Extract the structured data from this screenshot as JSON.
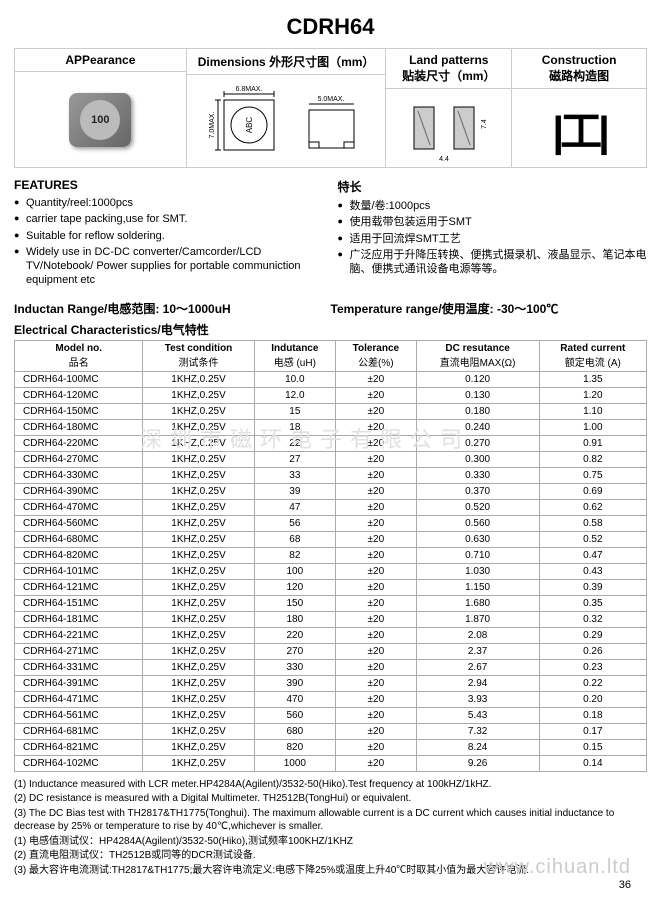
{
  "title": "CDRH64",
  "diagram_headers": {
    "appearance": "APPearance",
    "dimensions": "Dimensions 外形尺寸图（mm）",
    "land": "Land patterns\n贴装尺寸（mm）",
    "construction": "Construction\n磁路构造图"
  },
  "dim_labels": {
    "w": "6.8MAX.",
    "h": "7.0MAX.",
    "t": "5.0MAX.",
    "mark": "ABC"
  },
  "features_hdr_en": "FEATURES",
  "features_hdr_cn": "特长",
  "features_en": [
    "Quantity/reel:1000pcs",
    "carrier tape packing,use for SMT.",
    "Suitable for reflow soldering.",
    "Widely use in DC-DC converter/Camcorder/LCD TV/Notebook/ Power supplies for portable communiction equipment etc"
  ],
  "features_cn": [
    "数量/卷:1000pcs",
    "使用载带包装运用于SMT",
    "适用于回流焊SMT工艺",
    "广泛应用于升降压转换、便携式摄录机、液晶显示、笔记本电脑、便携式通讯设备电源等等。"
  ],
  "ind_range": "Inductan Range/电感范围: 10～1000uH",
  "temp_range": "Temperature range/使用温度: -30～100℃",
  "elec_char": "Electrical Characteristics/电气特性",
  "columns": [
    {
      "en": "Model no.",
      "cn": "品名"
    },
    {
      "en": "Test condition",
      "cn": "测试条件"
    },
    {
      "en": "Indutance",
      "cn": "电感 (uH)"
    },
    {
      "en": "Tolerance",
      "cn": "公差(%)"
    },
    {
      "en": "DC resutance",
      "cn": "直流电阻MAX(Ω)"
    },
    {
      "en": "Rated current",
      "cn": "额定电流 (A)"
    }
  ],
  "rows": [
    [
      "CDRH64-100MC",
      "1KHZ,0.25V",
      "10.0",
      "±20",
      "0.120",
      "1.35"
    ],
    [
      "CDRH64-120MC",
      "1KHZ,0.25V",
      "12.0",
      "±20",
      "0.130",
      "1.20"
    ],
    [
      "CDRH64-150MC",
      "1KHZ,0.25V",
      "15",
      "±20",
      "0.180",
      "1.10"
    ],
    [
      "CDRH64-180MC",
      "1KHZ,0.25V",
      "18",
      "±20",
      "0.240",
      "1.00"
    ],
    [
      "CDRH64-220MC",
      "1KHZ,0.25V",
      "22",
      "±20",
      "0.270",
      "0.91"
    ],
    [
      "CDRH64-270MC",
      "1KHZ,0.25V",
      "27",
      "±20",
      "0.300",
      "0.82"
    ],
    [
      "CDRH64-330MC",
      "1KHZ,0.25V",
      "33",
      "±20",
      "0.330",
      "0.75"
    ],
    [
      "CDRH64-390MC",
      "1KHZ,0.25V",
      "39",
      "±20",
      "0.370",
      "0.69"
    ],
    [
      "CDRH64-470MC",
      "1KHZ,0.25V",
      "47",
      "±20",
      "0.520",
      "0.62"
    ],
    [
      "CDRH64-560MC",
      "1KHZ,0.25V",
      "56",
      "±20",
      "0.560",
      "0.58"
    ],
    [
      "CDRH64-680MC",
      "1KHZ,0.25V",
      "68",
      "±20",
      "0.630",
      "0.52"
    ],
    [
      "CDRH64-820MC",
      "1KHZ,0.25V",
      "82",
      "±20",
      "0.710",
      "0.47"
    ],
    [
      "CDRH64-101MC",
      "1KHZ,0.25V",
      "100",
      "±20",
      "1.030",
      "0.43"
    ],
    [
      "CDRH64-121MC",
      "1KHZ,0.25V",
      "120",
      "±20",
      "1.150",
      "0.39"
    ],
    [
      "CDRH64-151MC",
      "1KHZ,0.25V",
      "150",
      "±20",
      "1.680",
      "0.35"
    ],
    [
      "CDRH64-181MC",
      "1KHZ,0.25V",
      "180",
      "±20",
      "1.870",
      "0.32"
    ],
    [
      "CDRH64-221MC",
      "1KHZ,0.25V",
      "220",
      "±20",
      "2.08",
      "0.29"
    ],
    [
      "CDRH64-271MC",
      "1KHZ,0.25V",
      "270",
      "±20",
      "2.37",
      "0.26"
    ],
    [
      "CDRH64-331MC",
      "1KHZ,0.25V",
      "330",
      "±20",
      "2.67",
      "0.23"
    ],
    [
      "CDRH64-391MC",
      "1KHZ,0.25V",
      "390",
      "±20",
      "2.94",
      "0.22"
    ],
    [
      "CDRH64-471MC",
      "1KHZ,0.25V",
      "470",
      "±20",
      "3.93",
      "0.20"
    ],
    [
      "CDRH64-561MC",
      "1KHZ,0.25V",
      "560",
      "±20",
      "5.43",
      "0.18"
    ],
    [
      "CDRH64-681MC",
      "1KHZ,0.25V",
      "680",
      "±20",
      "7.32",
      "0.17"
    ],
    [
      "CDRH64-821MC",
      "1KHZ,0.25V",
      "820",
      "±20",
      "8.24",
      "0.15"
    ],
    [
      "CDRH64-102MC",
      "1KHZ,0.25V",
      "1000",
      "±20",
      "9.26",
      "0.14"
    ]
  ],
  "notes": [
    "(1) Inductance measured with LCR meter.HP4284A(Agilent)/3532-50(Hiko).Test frequency at 100kHZ/1kHZ.",
    "(2) DC resistance is measured with a Digital Multimeter.  TH2512B(TongHui) or equivalent.",
    "(3) The DC Bias test with TH2817&TH1775(Tonghui). The maximum allowable current is a DC current which causes initial inductance to decrease by 25% or temperature to rise by 40℃,whichever is smaller.",
    "(1) 电感值测试仪：HP4284A(Agilent)/3532-50(Hiko),测试频率100KHZ/1KHZ",
    "(2) 直流电阻测试仪：TH2512B或同等的DCR测试设备.",
    "(3) 最大容许电流测试:TH2817&TH1775;最大容许电流定义:电感下降25%或温度上升40℃时取其小值为最大容许电流."
  ],
  "watermark": "www.cihuan.ltd",
  "watermark2": "深圳市磁环电子有限公司",
  "page": "36"
}
